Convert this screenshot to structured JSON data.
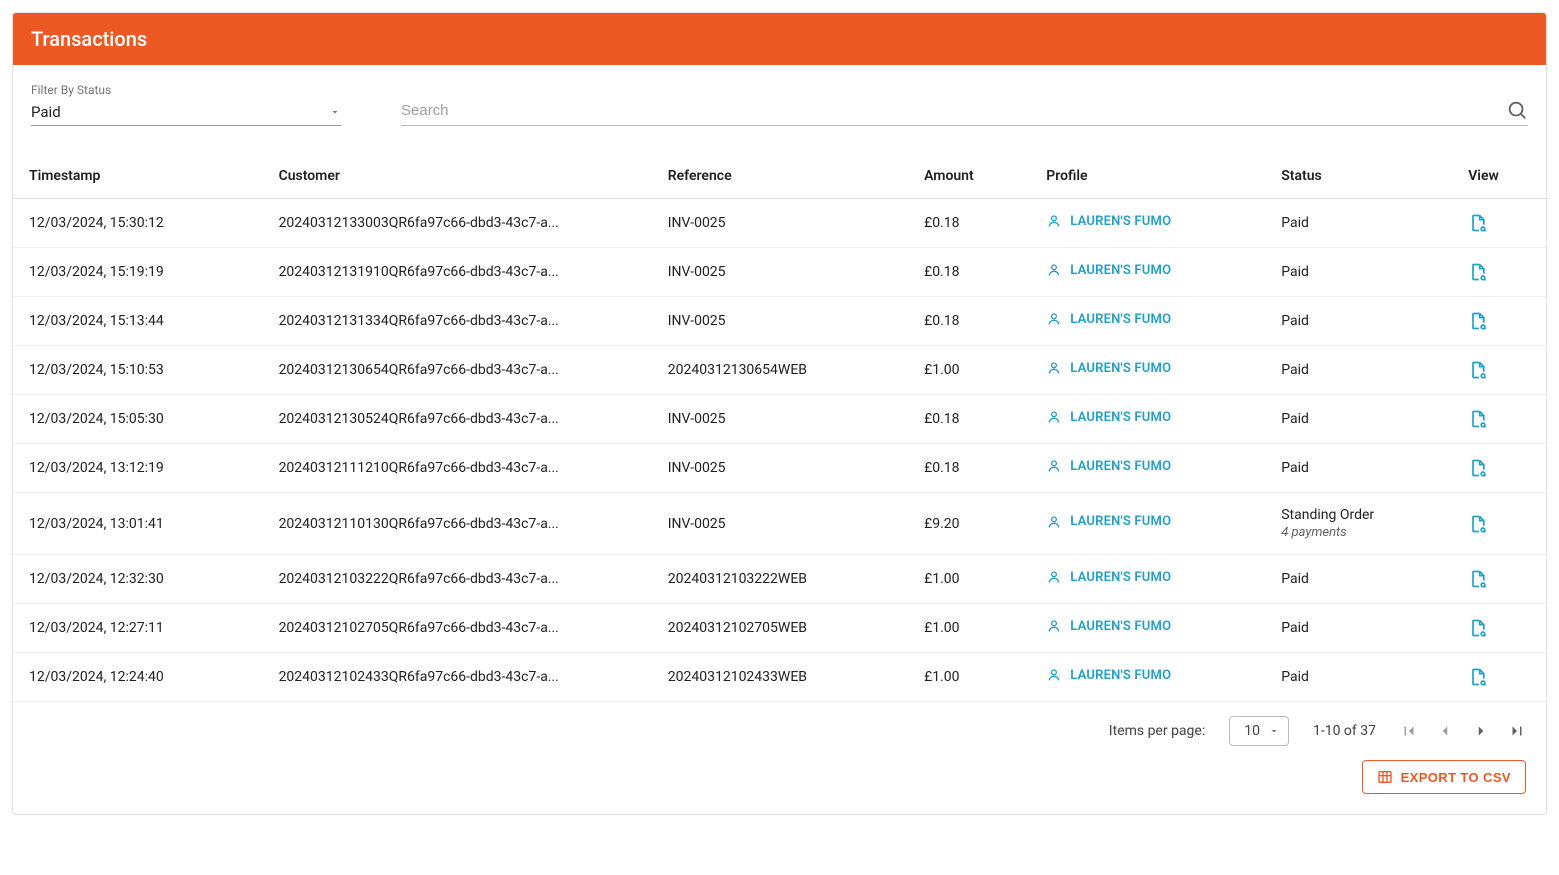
{
  "colors": {
    "primary": "#ed5923",
    "link": "#1ea1c8",
    "text": "#212121",
    "muted": "#757575",
    "border": "#e0e0e0"
  },
  "header": {
    "title": "Transactions"
  },
  "filter": {
    "label": "Filter By Status",
    "value": "Paid"
  },
  "search": {
    "placeholder": "Search",
    "value": ""
  },
  "table": {
    "columns": [
      "Timestamp",
      "Customer",
      "Reference",
      "Amount",
      "Profile",
      "Status",
      "View"
    ],
    "rows": [
      {
        "timestamp": "12/03/2024, 15:30:12",
        "customer": "20240312133003QR6fa97c66-dbd3-43c7-a...",
        "reference": "INV-0025",
        "amount": "£0.18",
        "profile": "LAUREN'S FUMO",
        "status": "Paid",
        "status_sub": null
      },
      {
        "timestamp": "12/03/2024, 15:19:19",
        "customer": "20240312131910QR6fa97c66-dbd3-43c7-a...",
        "reference": "INV-0025",
        "amount": "£0.18",
        "profile": "LAUREN'S FUMO",
        "status": "Paid",
        "status_sub": null
      },
      {
        "timestamp": "12/03/2024, 15:13:44",
        "customer": "20240312131334QR6fa97c66-dbd3-43c7-a...",
        "reference": "INV-0025",
        "amount": "£0.18",
        "profile": "LAUREN'S FUMO",
        "status": "Paid",
        "status_sub": null
      },
      {
        "timestamp": "12/03/2024, 15:10:53",
        "customer": "20240312130654QR6fa97c66-dbd3-43c7-a...",
        "reference": "20240312130654WEB",
        "amount": "£1.00",
        "profile": "LAUREN'S FUMO",
        "status": "Paid",
        "status_sub": null
      },
      {
        "timestamp": "12/03/2024, 15:05:30",
        "customer": "20240312130524QR6fa97c66-dbd3-43c7-a...",
        "reference": "INV-0025",
        "amount": "£0.18",
        "profile": "LAUREN'S FUMO",
        "status": "Paid",
        "status_sub": null
      },
      {
        "timestamp": "12/03/2024, 13:12:19",
        "customer": "20240312111210QR6fa97c66-dbd3-43c7-a...",
        "reference": "INV-0025",
        "amount": "£0.18",
        "profile": "LAUREN'S FUMO",
        "status": "Paid",
        "status_sub": null
      },
      {
        "timestamp": "12/03/2024, 13:01:41",
        "customer": "20240312110130QR6fa97c66-dbd3-43c7-a...",
        "reference": "INV-0025",
        "amount": "£9.20",
        "profile": "LAUREN'S FUMO",
        "status": "Standing Order",
        "status_sub": "4 payments"
      },
      {
        "timestamp": "12/03/2024, 12:32:30",
        "customer": "20240312103222QR6fa97c66-dbd3-43c7-a...",
        "reference": "20240312103222WEB",
        "amount": "£1.00",
        "profile": "LAUREN'S FUMO",
        "status": "Paid",
        "status_sub": null
      },
      {
        "timestamp": "12/03/2024, 12:27:11",
        "customer": "20240312102705QR6fa97c66-dbd3-43c7-a...",
        "reference": "20240312102705WEB",
        "amount": "£1.00",
        "profile": "LAUREN'S FUMO",
        "status": "Paid",
        "status_sub": null
      },
      {
        "timestamp": "12/03/2024, 12:24:40",
        "customer": "20240312102433QR6fa97c66-dbd3-43c7-a...",
        "reference": "20240312102433WEB",
        "amount": "£1.00",
        "profile": "LAUREN'S FUMO",
        "status": "Paid",
        "status_sub": null
      }
    ]
  },
  "paginator": {
    "label": "Items per page:",
    "page_size": "10",
    "range": "1-10 of 37",
    "first_enabled": false,
    "prev_enabled": false,
    "next_enabled": true,
    "last_enabled": true
  },
  "export": {
    "label": "EXPORT TO CSV"
  }
}
